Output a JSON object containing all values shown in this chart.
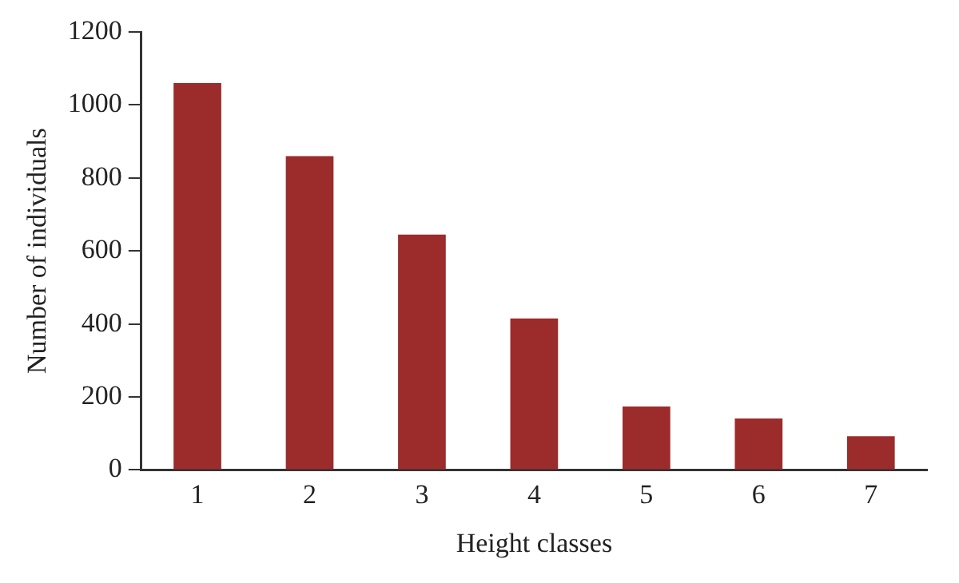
{
  "chart_data": {
    "type": "bar",
    "xlabel": "Height classes",
    "ylabel": "Number of individuals",
    "categories": [
      "1",
      "2",
      "3",
      "4",
      "5",
      "6",
      "7"
    ],
    "values": [
      1060,
      860,
      645,
      415,
      174,
      141,
      92
    ],
    "color": "#9c2b2b",
    "ylim": [
      0,
      1200
    ],
    "yticks": [
      0,
      200,
      400,
      600,
      800,
      1000,
      1200
    ],
    "grid": false,
    "legend": false
  }
}
